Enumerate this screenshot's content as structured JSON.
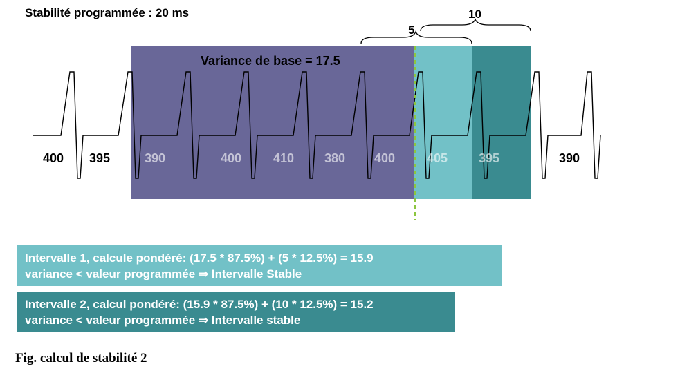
{
  "title": "Stabilité programmée : 20 ms",
  "base_variance_label": "Variance de base = 17.5",
  "braces": {
    "short": "5",
    "long": "10"
  },
  "intervals": [
    {
      "label": "400",
      "tone": "dark"
    },
    {
      "label": "395",
      "tone": "dark"
    },
    {
      "label": "390",
      "tone": "light"
    },
    {
      "label": "400",
      "tone": "light"
    },
    {
      "label": "410",
      "tone": "light"
    },
    {
      "label": "380",
      "tone": "light"
    },
    {
      "label": "400",
      "tone": "light"
    },
    {
      "label": "405",
      "tone": "light"
    },
    {
      "label": "395",
      "tone": "light"
    },
    {
      "label": "390",
      "tone": "dark"
    }
  ],
  "calc_boxes": [
    {
      "line1": "Intervalle 1, calcule pondéré: (17.5 * 87.5%) + (5 * 12.5%) = 15.9",
      "line2": "variance < valeur programmée  ⇒   Intervalle Stable"
    },
    {
      "line1": "Intervalle 2, calcul pondéré: (15.9 * 87.5%) + (10 * 12.5%) = 15.2",
      "line2": "variance < valeur programmée  ⇒   Intervalle stable"
    }
  ],
  "caption": "Fig. calcul de stabilité 2",
  "colors": {
    "base_window": "#696798",
    "interval_1": "#72c1c7",
    "interval_2": "#3a8b90",
    "marker": "#8cc63f"
  }
}
